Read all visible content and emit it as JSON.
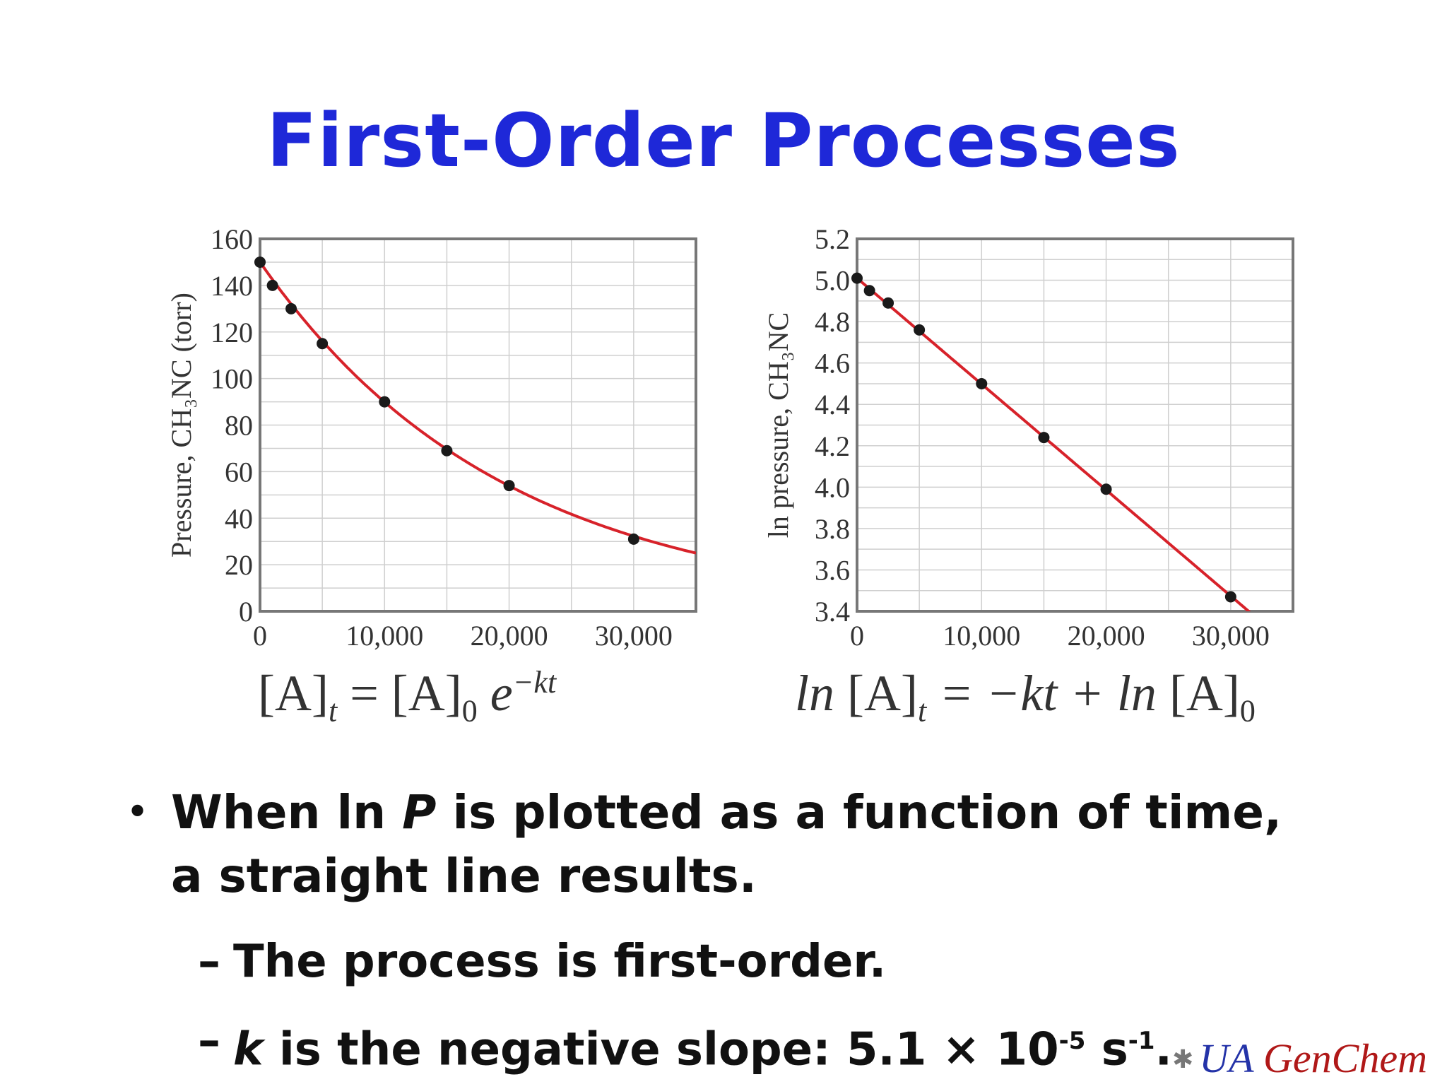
{
  "title": "First-Order Processes",
  "chart_data": [
    {
      "type": "scatter",
      "ylabel": "Pressure, CH₃NC (torr)",
      "xlim": [
        0,
        35000
      ],
      "ylim": [
        0,
        160
      ],
      "xticks": [
        0,
        10000,
        20000,
        30000
      ],
      "xtick_labels": [
        "0",
        "10,000",
        "20,000",
        "30,000"
      ],
      "yticks": [
        0,
        20,
        40,
        60,
        80,
        100,
        120,
        140,
        160
      ],
      "points": {
        "x": [
          0,
          1000,
          2500,
          5000,
          10000,
          15000,
          20000,
          30000
        ],
        "y": [
          150,
          140,
          130,
          115,
          90,
          69,
          54,
          31
        ]
      },
      "fit": {
        "form": "exponential",
        "p0": 150,
        "k": 5.12e-05,
        "color": "#d7222a"
      },
      "grid": true,
      "point_color": "#1a1a1a",
      "equation": "[A]t = [A]0 e^-kt"
    },
    {
      "type": "scatter",
      "ylabel": "ln pressure, CH₃NC",
      "xlim": [
        0,
        35000
      ],
      "ylim": [
        3.4,
        5.2
      ],
      "xticks": [
        0,
        10000,
        20000,
        30000
      ],
      "xtick_labels": [
        "0",
        "10,000",
        "20,000",
        "30,000"
      ],
      "yticks": [
        3.4,
        3.6,
        3.8,
        4.0,
        4.2,
        4.4,
        4.6,
        4.8,
        5.0,
        5.2
      ],
      "ytick_labels": [
        "3.4",
        "3.6",
        "3.8",
        "4.0",
        "4.2",
        "4.4",
        "4.6",
        "4.8",
        "5.0",
        "5.2"
      ],
      "points": {
        "x": [
          0,
          1000,
          2500,
          5000,
          10000,
          15000,
          20000,
          30000
        ],
        "y": [
          5.01,
          4.95,
          4.89,
          4.76,
          4.5,
          4.24,
          3.99,
          3.47
        ]
      },
      "fit": {
        "form": "linear",
        "intercept": 5.01,
        "slope": -5.12e-05,
        "color": "#d7222a"
      },
      "grid": true,
      "point_color": "#1a1a1a",
      "equation": "ln [A]t = −kt + ln [A]0"
    }
  ],
  "equations": {
    "left": {
      "lhs": "[A]",
      "lhs_sub": "t",
      "eq": " = ",
      "rhs": "[A]",
      "rhs_sub": "0",
      "e": " e",
      "exp": "−kt"
    },
    "right": {
      "ln1": "ln ",
      "a1": "[A]",
      "sub1": "t",
      "eq": " = −kt + ",
      "ln2": "ln ",
      "a2": "[A]",
      "sub2": "0"
    }
  },
  "bullets": {
    "main_pre": "When ln ",
    "main_var": "P",
    "main_post": " is plotted as a function of time, a straight line results.",
    "sub1": "The process is first-order.",
    "sub2_var": "k",
    "sub2_text": " is the negative slope:  5.1 × 10",
    "sub2_exp": "-5",
    "sub2_unit": " s",
    "sub2_unit_exp": "-1",
    "sub2_end": "."
  },
  "logo": {
    "ua": "UA",
    "genchem": "GenChem"
  },
  "colors": {
    "title": "#1e28d8",
    "curve": "#d7222a",
    "grid": "#cfcfcf",
    "frame": "#777777",
    "logo_ua": "#2433a8",
    "logo_genchem": "#b01818"
  }
}
